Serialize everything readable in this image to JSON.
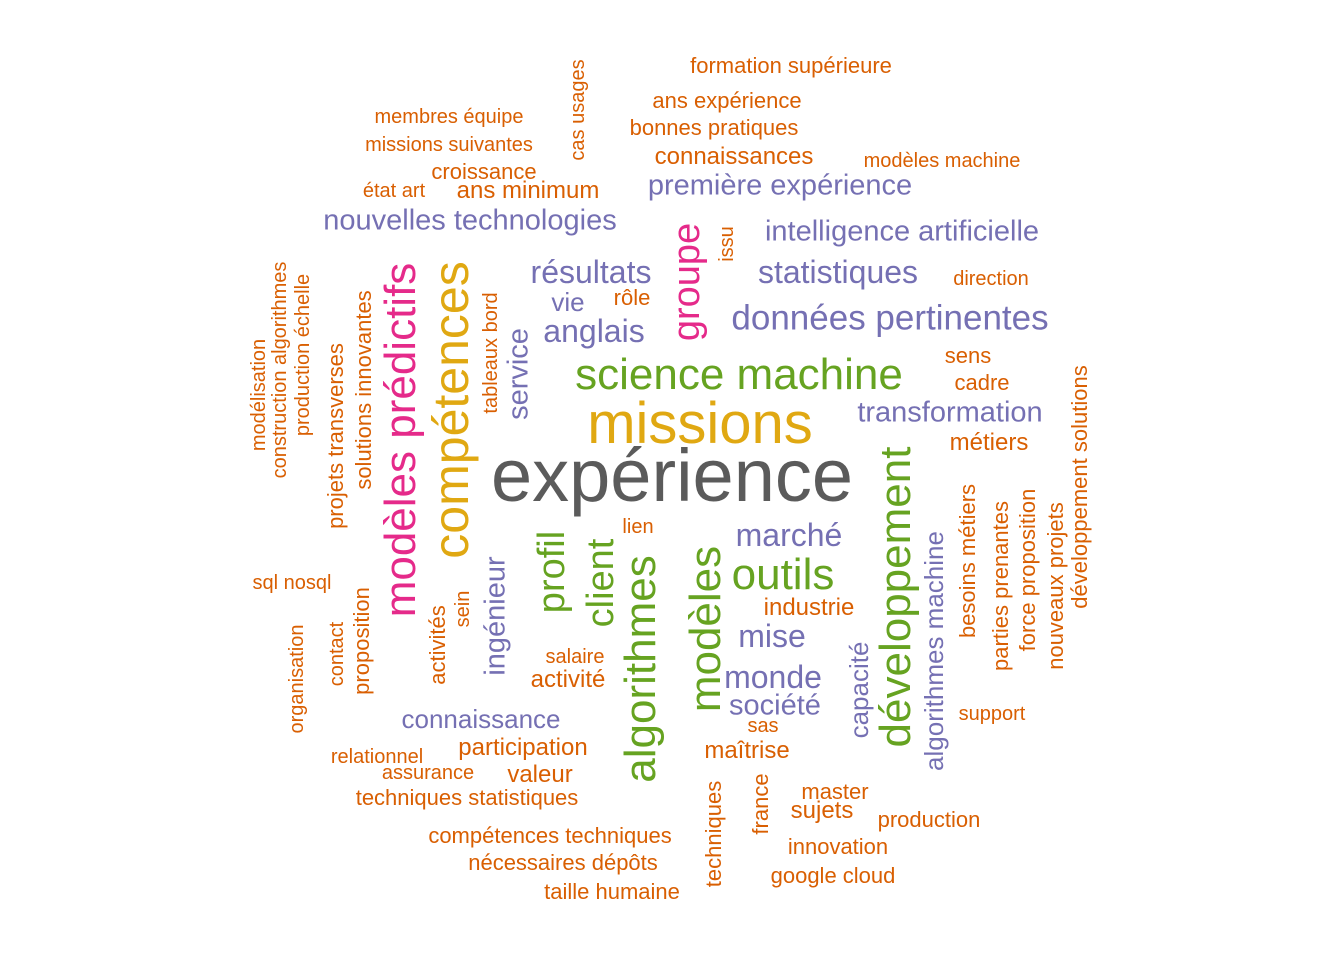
{
  "colors": {
    "grey": "#5b5b5b",
    "gold": "#e0a812",
    "green": "#66a321",
    "pink": "#e52a8a",
    "purple": "#7570b3",
    "orange": "#d95f02"
  },
  "words": [
    "expérience",
    "missions",
    "compétences",
    "science machine",
    "modèles prédictifs",
    "groupe",
    "algorithmes",
    "modèles",
    "développement",
    "client",
    "profil",
    "outils",
    "résultats",
    "anglais",
    "vie",
    "rôle",
    "service",
    "tableaux bord",
    "statistiques",
    "données pertinentes",
    "intelligence artificielle",
    "première expérience",
    "nouvelles technologies",
    "transformation",
    "marché",
    "mise",
    "monde",
    "société",
    "sas",
    "capacité",
    "algorithmes machine",
    "ingénieur",
    "connaissance",
    "issu",
    "direction",
    "sens",
    "cadre",
    "métiers",
    "lien",
    "industrie",
    "activité",
    "salaire",
    "participation",
    "valeur",
    "maîtrise",
    "techniques",
    "france",
    "master",
    "sujets",
    "production",
    "innovation",
    "google cloud",
    "support",
    "besoins métiers",
    "parties prenantes",
    "force proposition",
    "nouveaux projets",
    "développement solutions",
    "formation supérieure",
    "ans expérience",
    "bonnes pratiques",
    "connaissances",
    "modèles machine",
    "membres équipe",
    "missions suivantes",
    "croissance",
    "état art",
    "ans minimum",
    "cas usages",
    "modélisation",
    "construction algorithmes",
    "production échelle",
    "projets transverses",
    "solutions innovantes",
    "sql nosql",
    "organisation",
    "contact",
    "proposition",
    "activités",
    "sein",
    "relationnel",
    "assurance",
    "techniques statistiques",
    "compétences techniques",
    "nécessaires dépôts",
    "taille humaine"
  ]
}
